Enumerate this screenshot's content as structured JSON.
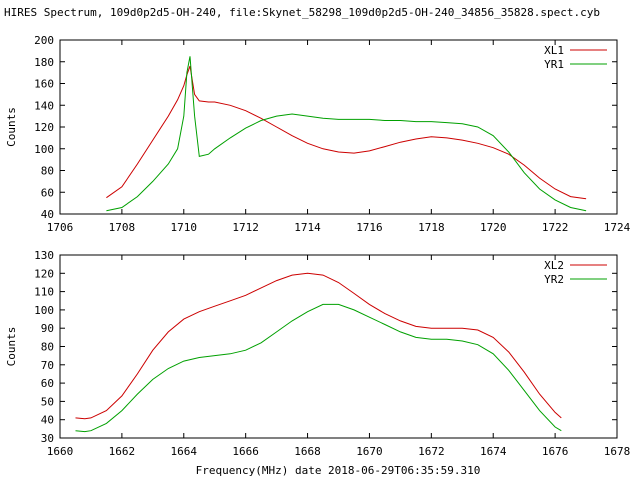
{
  "title": "HIRES Spectrum, 109d0p2d5-OH-240, file:Skynet_58298_109d0p2d5-OH-240_34856_35828.spect.cyb",
  "xlabel": "Frequency(MHz) date 2018-06-29T06:35:59.310",
  "colors": {
    "series1": "#cc0000",
    "series2": "#00a000"
  },
  "chart_data": [
    {
      "type": "line",
      "ylabel": "Counts",
      "xlim": [
        1706,
        1724
      ],
      "ylim": [
        40,
        200
      ],
      "xticks": [
        1706,
        1708,
        1710,
        1712,
        1714,
        1716,
        1718,
        1720,
        1722,
        1724
      ],
      "yticks": [
        40,
        60,
        80,
        100,
        120,
        140,
        160,
        180,
        200
      ],
      "legend": "top-right",
      "series": [
        {
          "name": "XL1",
          "x": [
            1707.5,
            1708.0,
            1708.5,
            1709.0,
            1709.5,
            1709.8,
            1710.0,
            1710.1,
            1710.2,
            1710.35,
            1710.5,
            1710.8,
            1711.0,
            1711.5,
            1712.0,
            1712.5,
            1713.0,
            1713.5,
            1714.0,
            1714.5,
            1715.0,
            1715.5,
            1716.0,
            1716.5,
            1717.0,
            1717.5,
            1718.0,
            1718.5,
            1719.0,
            1719.5,
            1720.0,
            1720.5,
            1721.0,
            1721.5,
            1722.0,
            1722.5,
            1723.0
          ],
          "y": [
            55,
            65,
            86,
            108,
            130,
            145,
            158,
            168,
            176,
            150,
            144,
            143,
            143,
            140,
            135,
            128,
            120,
            112,
            105,
            100,
            97,
            96,
            98,
            102,
            106,
            109,
            111,
            110,
            108,
            105,
            101,
            95,
            85,
            73,
            63,
            56,
            54
          ]
        },
        {
          "name": "YR1",
          "x": [
            1707.5,
            1708.0,
            1708.5,
            1709.0,
            1709.5,
            1709.8,
            1710.0,
            1710.1,
            1710.2,
            1710.35,
            1710.5,
            1710.8,
            1711.0,
            1711.5,
            1712.0,
            1712.5,
            1713.0,
            1713.5,
            1714.0,
            1714.5,
            1715.0,
            1715.5,
            1716.0,
            1716.5,
            1717.0,
            1717.5,
            1718.0,
            1718.5,
            1719.0,
            1719.5,
            1720.0,
            1720.5,
            1721.0,
            1721.5,
            1722.0,
            1722.5,
            1723.0
          ],
          "y": [
            43,
            46,
            56,
            70,
            86,
            100,
            130,
            170,
            185,
            130,
            93,
            95,
            100,
            110,
            119,
            126,
            130,
            132,
            130,
            128,
            127,
            127,
            127,
            126,
            126,
            125,
            125,
            124,
            123,
            120,
            112,
            97,
            78,
            63,
            53,
            46,
            43
          ]
        }
      ]
    },
    {
      "type": "line",
      "ylabel": "Counts",
      "xlim": [
        1660,
        1678
      ],
      "ylim": [
        30,
        130
      ],
      "xticks": [
        1660,
        1662,
        1664,
        1666,
        1668,
        1670,
        1672,
        1674,
        1676,
        1678
      ],
      "yticks": [
        30,
        40,
        50,
        60,
        70,
        80,
        90,
        100,
        110,
        120,
        130
      ],
      "legend": "top-right",
      "series": [
        {
          "name": "XL2",
          "x": [
            1660.5,
            1660.8,
            1661.0,
            1661.5,
            1662.0,
            1662.5,
            1663.0,
            1663.5,
            1664.0,
            1664.5,
            1665.0,
            1665.5,
            1666.0,
            1666.5,
            1667.0,
            1667.5,
            1668.0,
            1668.5,
            1669.0,
            1669.5,
            1670.0,
            1670.5,
            1671.0,
            1671.5,
            1672.0,
            1672.5,
            1673.0,
            1673.5,
            1674.0,
            1674.5,
            1675.0,
            1675.5,
            1676.0,
            1676.2
          ],
          "y": [
            41,
            40.5,
            41,
            45,
            53,
            65,
            78,
            88,
            95,
            99,
            102,
            105,
            108,
            112,
            116,
            119,
            120,
            119,
            115,
            109,
            103,
            98,
            94,
            91,
            90,
            90,
            90,
            89,
            85,
            77,
            66,
            54,
            44,
            41
          ]
        },
        {
          "name": "YR2",
          "x": [
            1660.5,
            1660.8,
            1661.0,
            1661.5,
            1662.0,
            1662.5,
            1663.0,
            1663.5,
            1664.0,
            1664.5,
            1665.0,
            1665.5,
            1666.0,
            1666.5,
            1667.0,
            1667.5,
            1668.0,
            1668.5,
            1669.0,
            1669.5,
            1670.0,
            1670.5,
            1671.0,
            1671.5,
            1672.0,
            1672.5,
            1673.0,
            1673.5,
            1674.0,
            1674.5,
            1675.0,
            1675.5,
            1676.0,
            1676.2
          ],
          "y": [
            34,
            33.5,
            34,
            38,
            45,
            54,
            62,
            68,
            72,
            74,
            75,
            76,
            78,
            82,
            88,
            94,
            99,
            103,
            103,
            100,
            96,
            92,
            88,
            85,
            84,
            84,
            83,
            81,
            76,
            67,
            56,
            45,
            36,
            34
          ]
        }
      ]
    }
  ]
}
